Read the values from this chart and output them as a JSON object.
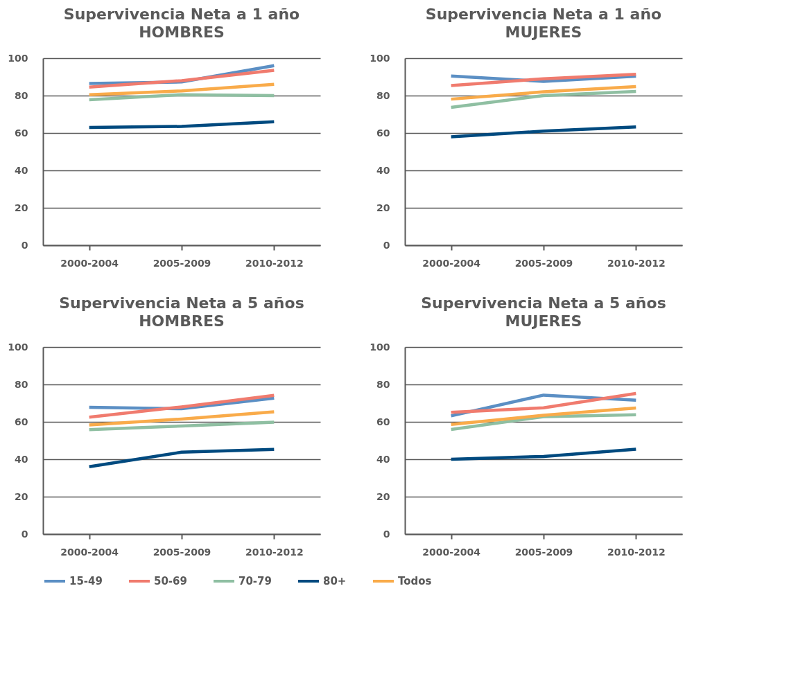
{
  "chart_data": [
    {
      "type": "line",
      "title": "Supervivencia Neta a 1 año",
      "subtitle": "HOMBRES",
      "categories": [
        "2000-2004",
        "2005-2009",
        "2010-2012"
      ],
      "ylim": [
        0,
        100
      ],
      "yticks": [
        0,
        20,
        40,
        60,
        80,
        100
      ],
      "grid": "y",
      "legend": "bottom",
      "series": [
        {
          "name": "15-49",
          "color": "#5b8fc4",
          "values": [
            86.5,
            87.3,
            96
          ]
        },
        {
          "name": "50-69",
          "color": "#f07b6e",
          "values": [
            84.5,
            88,
            93.5
          ]
        },
        {
          "name": "70-79",
          "color": "#8fbfa2",
          "values": [
            77.8,
            80.5,
            80
          ]
        },
        {
          "name": "80+",
          "color": "#004a7f",
          "values": [
            63,
            63.5,
            66
          ]
        },
        {
          "name": "Todos",
          "color": "#f9ab4a",
          "values": [
            80.5,
            82.5,
            86
          ]
        }
      ]
    },
    {
      "type": "line",
      "title": "Supervivencia Neta a 1 año",
      "subtitle": "MUJERES",
      "categories": [
        "2000-2004",
        "2005-2009",
        "2010-2012"
      ],
      "ylim": [
        0,
        100
      ],
      "yticks": [
        0,
        20,
        40,
        60,
        80,
        100
      ],
      "grid": "y",
      "legend": "bottom",
      "series": [
        {
          "name": "15-49",
          "color": "#5b8fc4",
          "values": [
            90.5,
            87.6,
            90.4
          ]
        },
        {
          "name": "50-69",
          "color": "#f07b6e",
          "values": [
            85.4,
            89,
            91.4
          ]
        },
        {
          "name": "70-79",
          "color": "#8fbfa2",
          "values": [
            73.7,
            80,
            82.2
          ]
        },
        {
          "name": "80+",
          "color": "#004a7f",
          "values": [
            58,
            61,
            63.2
          ]
        },
        {
          "name": "Todos",
          "color": "#f9ab4a",
          "values": [
            78.1,
            82,
            84.8
          ]
        }
      ]
    },
    {
      "type": "line",
      "title": "Supervivencia Neta a 5 años",
      "subtitle": "HOMBRES",
      "categories": [
        "2000-2004",
        "2005-2009",
        "2010-2012"
      ],
      "ylim": [
        0,
        100
      ],
      "yticks": [
        0,
        20,
        40,
        60,
        80,
        100
      ],
      "grid": "y",
      "legend": "bottom",
      "series": [
        {
          "name": "15-49",
          "color": "#5b8fc4",
          "values": [
            67.8,
            67,
            72.7
          ]
        },
        {
          "name": "50-69",
          "color": "#f07b6e",
          "values": [
            62.5,
            68,
            74.2
          ]
        },
        {
          "name": "70-79",
          "color": "#8fbfa2",
          "values": [
            55.8,
            57.8,
            59.8
          ]
        },
        {
          "name": "80+",
          "color": "#004a7f",
          "values": [
            36,
            43.8,
            45.3
          ]
        },
        {
          "name": "Todos",
          "color": "#f9ab4a",
          "values": [
            58.3,
            61.5,
            65.4
          ]
        }
      ]
    },
    {
      "type": "line",
      "title": "Supervivencia Neta a 5 años",
      "subtitle": "MUJERES",
      "categories": [
        "2000-2004",
        "2005-2009",
        "2010-2012"
      ],
      "ylim": [
        0,
        100
      ],
      "yticks": [
        0,
        20,
        40,
        60,
        80,
        100
      ],
      "grid": "y",
      "legend": "bottom",
      "series": [
        {
          "name": "15-49",
          "color": "#5b8fc4",
          "values": [
            63.2,
            74.3,
            71.6
          ]
        },
        {
          "name": "50-69",
          "color": "#f07b6e",
          "values": [
            65.1,
            67.5,
            75.2
          ]
        },
        {
          "name": "70-79",
          "color": "#8fbfa2",
          "values": [
            55.9,
            62.8,
            63.8
          ]
        },
        {
          "name": "80+",
          "color": "#004a7f",
          "values": [
            40,
            41.5,
            45.4
          ]
        },
        {
          "name": "Todos",
          "color": "#f9ab4a",
          "values": [
            58.6,
            63.5,
            67.4
          ]
        }
      ]
    }
  ]
}
